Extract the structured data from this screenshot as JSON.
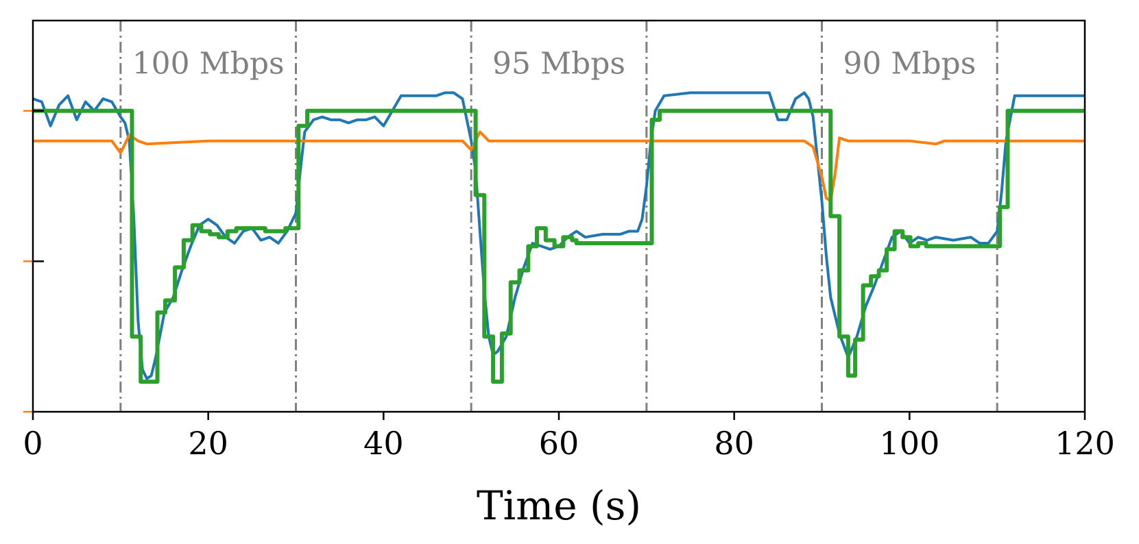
{
  "chart_data": {
    "type": "line",
    "xlabel": "Time (s)",
    "ylabel": "",
    "xlim": [
      0,
      120
    ],
    "ylim": [
      0,
      1.3
    ],
    "xticks": [
      0,
      20,
      40,
      60,
      80,
      100,
      120
    ],
    "xtick_labels": [
      "0",
      "20",
      "40",
      "60",
      "80",
      "100",
      "120"
    ],
    "grid": false,
    "legend": "none",
    "vlines": [
      10,
      30,
      50,
      70,
      90,
      110
    ],
    "annotations": [
      {
        "text": "100 Mbps",
        "x": 20,
        "y": 1.15
      },
      {
        "text": "95 Mbps",
        "x": 60,
        "y": 1.15
      },
      {
        "text": "90 Mbps",
        "x": 100,
        "y": 1.15
      }
    ],
    "series": [
      {
        "color": "#1f77b4",
        "style": "line",
        "points": [
          [
            0,
            1.04
          ],
          [
            1,
            1.03
          ],
          [
            2,
            0.95
          ],
          [
            3,
            1.02
          ],
          [
            4,
            1.05
          ],
          [
            5,
            0.97
          ],
          [
            6,
            1.03
          ],
          [
            7,
            1.0
          ],
          [
            8,
            1.04
          ],
          [
            9,
            1.03
          ],
          [
            10,
            0.98
          ],
          [
            10.5,
            0.96
          ],
          [
            11,
            0.9
          ],
          [
            11.5,
            0.65
          ],
          [
            12,
            0.3
          ],
          [
            12.5,
            0.14
          ],
          [
            13,
            0.11
          ],
          [
            13.5,
            0.12
          ],
          [
            14,
            0.18
          ],
          [
            15,
            0.33
          ],
          [
            16,
            0.38
          ],
          [
            17,
            0.47
          ],
          [
            18,
            0.55
          ],
          [
            19,
            0.62
          ],
          [
            20,
            0.64
          ],
          [
            21,
            0.62
          ],
          [
            22,
            0.58
          ],
          [
            23,
            0.56
          ],
          [
            24,
            0.6
          ],
          [
            25,
            0.61
          ],
          [
            26,
            0.57
          ],
          [
            27,
            0.58
          ],
          [
            28,
            0.56
          ],
          [
            29,
            0.6
          ],
          [
            30,
            0.66
          ],
          [
            30.5,
            0.8
          ],
          [
            31,
            0.93
          ],
          [
            32,
            0.97
          ],
          [
            33,
            0.98
          ],
          [
            34,
            0.97
          ],
          [
            35,
            0.97
          ],
          [
            36,
            0.96
          ],
          [
            37,
            0.97
          ],
          [
            38,
            0.97
          ],
          [
            39,
            0.98
          ],
          [
            40,
            0.95
          ],
          [
            41,
            1.0
          ],
          [
            42,
            1.05
          ],
          [
            44,
            1.05
          ],
          [
            46,
            1.05
          ],
          [
            47,
            1.06
          ],
          [
            48,
            1.06
          ],
          [
            49,
            1.04
          ],
          [
            50,
            0.9
          ],
          [
            50.5,
            0.8
          ],
          [
            51,
            0.6
          ],
          [
            51.5,
            0.4
          ],
          [
            52,
            0.25
          ],
          [
            52.5,
            0.19
          ],
          [
            53,
            0.2
          ],
          [
            54,
            0.25
          ],
          [
            55,
            0.38
          ],
          [
            56,
            0.48
          ],
          [
            57,
            0.56
          ],
          [
            58,
            0.55
          ],
          [
            59,
            0.54
          ],
          [
            60,
            0.55
          ],
          [
            61,
            0.58
          ],
          [
            62,
            0.6
          ],
          [
            63,
            0.58
          ],
          [
            65,
            0.59
          ],
          [
            67,
            0.59
          ],
          [
            68,
            0.6
          ],
          [
            69,
            0.6
          ],
          [
            69.5,
            0.64
          ],
          [
            70,
            0.75
          ],
          [
            70.5,
            0.9
          ],
          [
            71,
            1.0
          ],
          [
            72,
            1.05
          ],
          [
            75,
            1.06
          ],
          [
            80,
            1.06
          ],
          [
            84,
            1.06
          ],
          [
            85,
            0.97
          ],
          [
            86,
            0.97
          ],
          [
            87,
            1.04
          ],
          [
            88,
            1.06
          ],
          [
            88.5,
            1.04
          ],
          [
            89,
            0.98
          ],
          [
            90,
            0.7
          ],
          [
            90.5,
            0.52
          ],
          [
            91,
            0.38
          ],
          [
            92,
            0.26
          ],
          [
            93,
            0.18
          ],
          [
            94,
            0.25
          ],
          [
            95,
            0.35
          ],
          [
            96,
            0.42
          ],
          [
            97,
            0.5
          ],
          [
            98,
            0.58
          ],
          [
            99,
            0.6
          ],
          [
            100,
            0.56
          ],
          [
            101,
            0.58
          ],
          [
            102,
            0.57
          ],
          [
            103,
            0.58
          ],
          [
            105,
            0.57
          ],
          [
            107,
            0.58
          ],
          [
            108,
            0.56
          ],
          [
            109,
            0.56
          ],
          [
            110,
            0.6
          ],
          [
            110.5,
            0.73
          ],
          [
            111,
            0.9
          ],
          [
            112,
            1.05
          ],
          [
            115,
            1.05
          ],
          [
            118,
            1.05
          ],
          [
            120,
            1.05
          ]
        ]
      },
      {
        "color": "#ff7f0e",
        "style": "line",
        "points": [
          [
            0,
            0.9
          ],
          [
            9,
            0.9
          ],
          [
            10,
            0.86
          ],
          [
            11,
            0.92
          ],
          [
            12,
            0.9
          ],
          [
            13,
            0.89
          ],
          [
            20,
            0.9
          ],
          [
            25,
            0.9
          ],
          [
            30,
            0.9
          ],
          [
            35,
            0.9
          ],
          [
            40,
            0.9
          ],
          [
            45,
            0.9
          ],
          [
            49,
            0.9
          ],
          [
            50,
            0.87
          ],
          [
            51,
            0.93
          ],
          [
            52,
            0.9
          ],
          [
            53,
            0.9
          ],
          [
            60,
            0.9
          ],
          [
            65,
            0.9
          ],
          [
            70,
            0.9
          ],
          [
            75,
            0.9
          ],
          [
            80,
            0.9
          ],
          [
            85,
            0.9
          ],
          [
            88,
            0.9
          ],
          [
            89,
            0.88
          ],
          [
            90,
            0.78
          ],
          [
            90.5,
            0.71
          ],
          [
            91,
            0.7
          ],
          [
            91.5,
            0.79
          ],
          [
            92,
            0.91
          ],
          [
            93,
            0.9
          ],
          [
            100,
            0.9
          ],
          [
            103,
            0.89
          ],
          [
            104,
            0.9
          ],
          [
            110,
            0.9
          ],
          [
            115,
            0.9
          ],
          [
            120,
            0.9
          ]
        ]
      },
      {
        "color": "#2ca02c",
        "style": "step",
        "points": [
          [
            0,
            1.0
          ],
          [
            11.3,
            1.0
          ],
          [
            11.3,
            0.25
          ],
          [
            12.3,
            0.25
          ],
          [
            12.3,
            0.1
          ],
          [
            14.2,
            0.1
          ],
          [
            14.2,
            0.33
          ],
          [
            15.1,
            0.33
          ],
          [
            15.1,
            0.37
          ],
          [
            16.2,
            0.37
          ],
          [
            16.2,
            0.48
          ],
          [
            17.2,
            0.48
          ],
          [
            17.2,
            0.57
          ],
          [
            18.2,
            0.57
          ],
          [
            18.2,
            0.62
          ],
          [
            19.2,
            0.62
          ],
          [
            19.2,
            0.6
          ],
          [
            20.2,
            0.6
          ],
          [
            20.2,
            0.59
          ],
          [
            21.2,
            0.59
          ],
          [
            21.2,
            0.58
          ],
          [
            22.2,
            0.58
          ],
          [
            22.2,
            0.6
          ],
          [
            23.2,
            0.6
          ],
          [
            23.2,
            0.61
          ],
          [
            26.5,
            0.61
          ],
          [
            26.5,
            0.6
          ],
          [
            28.8,
            0.6
          ],
          [
            28.8,
            0.61
          ],
          [
            30.3,
            0.61
          ],
          [
            30.3,
            0.95
          ],
          [
            31.3,
            0.95
          ],
          [
            31.3,
            1.0
          ],
          [
            50.5,
            1.0
          ],
          [
            50.5,
            0.72
          ],
          [
            51.5,
            0.72
          ],
          [
            51.5,
            0.25
          ],
          [
            52.5,
            0.25
          ],
          [
            52.5,
            0.1
          ],
          [
            53.5,
            0.1
          ],
          [
            53.5,
            0.26
          ],
          [
            54.5,
            0.26
          ],
          [
            54.5,
            0.43
          ],
          [
            55.5,
            0.43
          ],
          [
            55.5,
            0.47
          ],
          [
            56.5,
            0.47
          ],
          [
            56.5,
            0.55
          ],
          [
            57.5,
            0.55
          ],
          [
            57.5,
            0.61
          ],
          [
            58.5,
            0.61
          ],
          [
            58.5,
            0.57
          ],
          [
            59.5,
            0.57
          ],
          [
            59.5,
            0.55
          ],
          [
            60.5,
            0.55
          ],
          [
            60.5,
            0.58
          ],
          [
            61.5,
            0.58
          ],
          [
            61.5,
            0.57
          ],
          [
            62,
            0.57
          ],
          [
            62,
            0.56
          ],
          [
            70.6,
            0.56
          ],
          [
            70.6,
            0.97
          ],
          [
            71.5,
            0.97
          ],
          [
            71.5,
            1.0
          ],
          [
            91,
            1.0
          ],
          [
            91,
            0.65
          ],
          [
            92,
            0.65
          ],
          [
            92,
            0.25
          ],
          [
            93,
            0.25
          ],
          [
            93,
            0.12
          ],
          [
            93.8,
            0.12
          ],
          [
            93.8,
            0.24
          ],
          [
            94.7,
            0.24
          ],
          [
            94.7,
            0.42
          ],
          [
            95.6,
            0.42
          ],
          [
            95.6,
            0.45
          ],
          [
            96.5,
            0.45
          ],
          [
            96.5,
            0.47
          ],
          [
            97.4,
            0.47
          ],
          [
            97.4,
            0.54
          ],
          [
            98.3,
            0.54
          ],
          [
            98.3,
            0.6
          ],
          [
            99.2,
            0.6
          ],
          [
            99.2,
            0.58
          ],
          [
            100.1,
            0.58
          ],
          [
            100.1,
            0.55
          ],
          [
            101,
            0.55
          ],
          [
            101,
            0.56
          ],
          [
            101.9,
            0.56
          ],
          [
            101.9,
            0.55
          ],
          [
            110.3,
            0.55
          ],
          [
            110.3,
            0.68
          ],
          [
            111.2,
            0.68
          ],
          [
            111.2,
            1.0
          ],
          [
            120,
            1.0
          ]
        ]
      }
    ],
    "left_marks": [
      {
        "y": 1.0,
        "color": "#ff7f0e"
      },
      {
        "y": 0.5,
        "color": "#ff7f0e"
      },
      {
        "y": 0.0,
        "color": "#ff7f0e"
      },
      {
        "y": 1.0,
        "color": "#000000"
      },
      {
        "y": 0.5,
        "color": "#000000"
      }
    ]
  }
}
